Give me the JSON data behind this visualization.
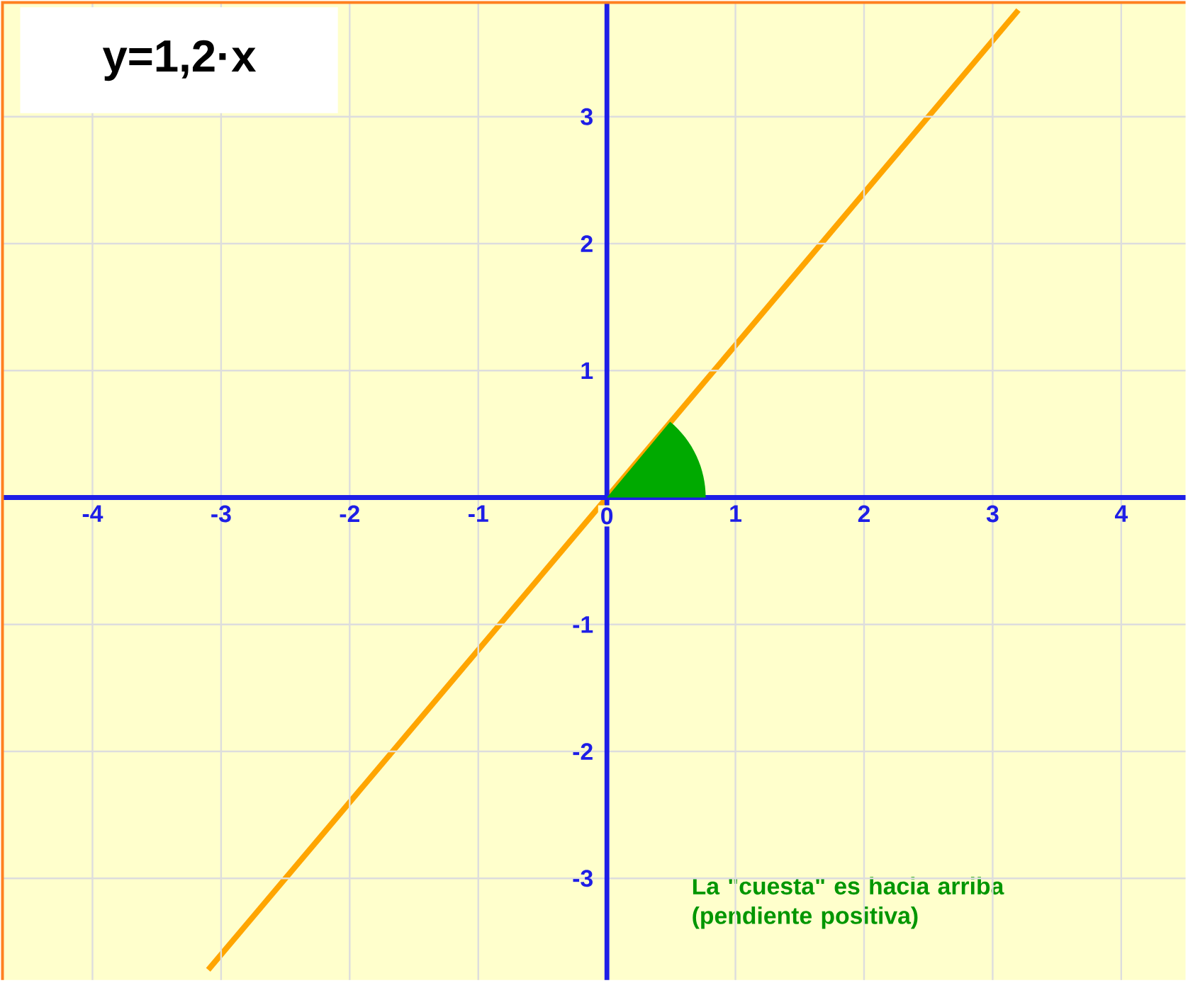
{
  "chart_data": {
    "type": "line",
    "title": "y=1,2·x",
    "xlim": [
      -4.7,
      4.5
    ],
    "ylim": [
      -3.8,
      3.9
    ],
    "xticks": [
      -4,
      -3,
      -2,
      -1,
      0,
      1,
      2,
      3,
      4
    ],
    "yticks": [
      -3,
      -2,
      -1,
      1,
      2,
      3
    ],
    "grid": true,
    "series": [
      {
        "color": "#ffa500",
        "x": [
          -3.1,
          3.2
        ],
        "values": [
          -3.72,
          3.84
        ]
      }
    ],
    "annotations": [
      "La \"cuesta\" es hacia arriba (pendiente positiva)"
    ]
  }
}
